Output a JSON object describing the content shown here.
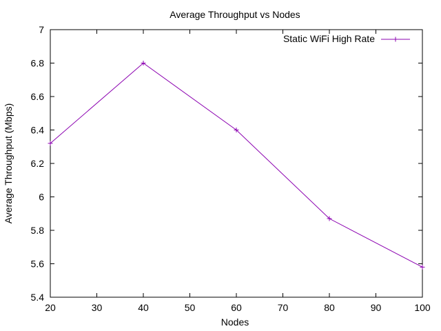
{
  "chart_data": {
    "type": "line",
    "title": "Average Throughput vs Nodes",
    "xlabel": "Nodes",
    "ylabel": "Average Throughput (Mbps)",
    "xlim": [
      20,
      100
    ],
    "ylim": [
      5.4,
      7
    ],
    "x_ticks": [
      20,
      30,
      40,
      50,
      60,
      70,
      80,
      90,
      100
    ],
    "y_ticks": [
      5.4,
      5.6,
      5.8,
      6.0,
      6.2,
      6.4,
      6.6,
      6.8,
      7.0
    ],
    "x_tick_labels": [
      "20",
      "30",
      "40",
      "50",
      "60",
      "70",
      "80",
      "90",
      "100"
    ],
    "y_tick_labels": [
      "5.4",
      "5.6",
      "5.8",
      "6",
      "6.2",
      "6.4",
      "6.6",
      "6.8",
      "7"
    ],
    "grid": false,
    "legend_position": "top-right",
    "series": [
      {
        "name": "Static WiFi High Rate",
        "color": "#8b00b0",
        "marker": "plus",
        "x": [
          20,
          40,
          60,
          80,
          100
        ],
        "y": [
          6.32,
          6.8,
          6.4,
          5.87,
          5.58
        ]
      }
    ]
  }
}
